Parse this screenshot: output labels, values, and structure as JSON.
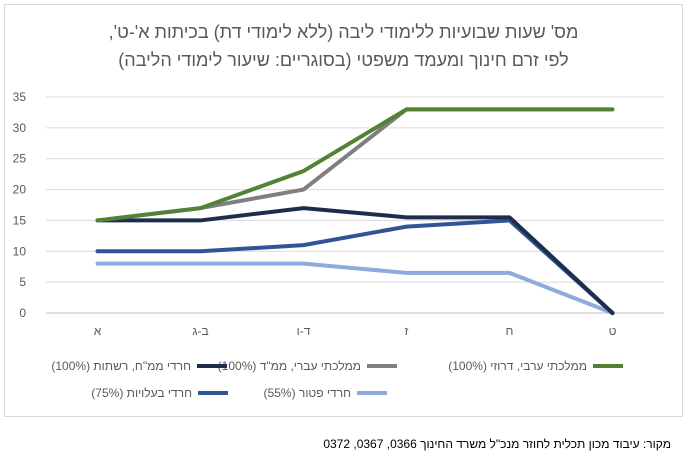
{
  "title_line1": "מס' שעות שבועיות ללימודי ליבה (ללא לימודי דת) בכיתות א'-ט',",
  "title_line2": "לפי זרם חינוך ומעמד משפטי (בסוגריים: שיעור לימודי הליבה)",
  "source_note": "מקור: עיבוד מכון תכלית לחוזר מנכ\"ל משרד החינוך 0366, 0367, 0372",
  "chart_data": {
    "type": "line",
    "categories": [
      "א",
      "ב-ג",
      "ד-ו",
      "ז",
      "ח",
      "ט"
    ],
    "ylim": [
      0,
      35
    ],
    "yticks": [
      0,
      5,
      10,
      15,
      20,
      25,
      30,
      35
    ],
    "grid": true,
    "legend_position": "bottom",
    "xlabel": "",
    "ylabel": "",
    "series": [
      {
        "name": "חרדי פטור (55%)",
        "color": "#8faadc",
        "values": [
          8,
          8,
          8,
          6.5,
          6.5,
          0
        ]
      },
      {
        "name": "חרדי בעלויות (75%)",
        "color": "#2f5597",
        "values": [
          10,
          10,
          11,
          14,
          15,
          0
        ]
      },
      {
        "name": "חרדי ממ\"ח, רשתות (100%)",
        "color": "#1f2d4d",
        "values": [
          15,
          15,
          17,
          15.5,
          15.5,
          0
        ]
      },
      {
        "name": "ממלכתי עברי, ממ\"ד (100%)",
        "color": "#7f7f7f",
        "values": [
          15,
          17,
          20,
          33,
          33,
          33
        ]
      },
      {
        "name": "ממלכתי ערבי, דרוזי (100%)",
        "color": "#548235",
        "values": [
          15,
          17,
          23,
          33,
          33,
          33
        ]
      }
    ]
  }
}
